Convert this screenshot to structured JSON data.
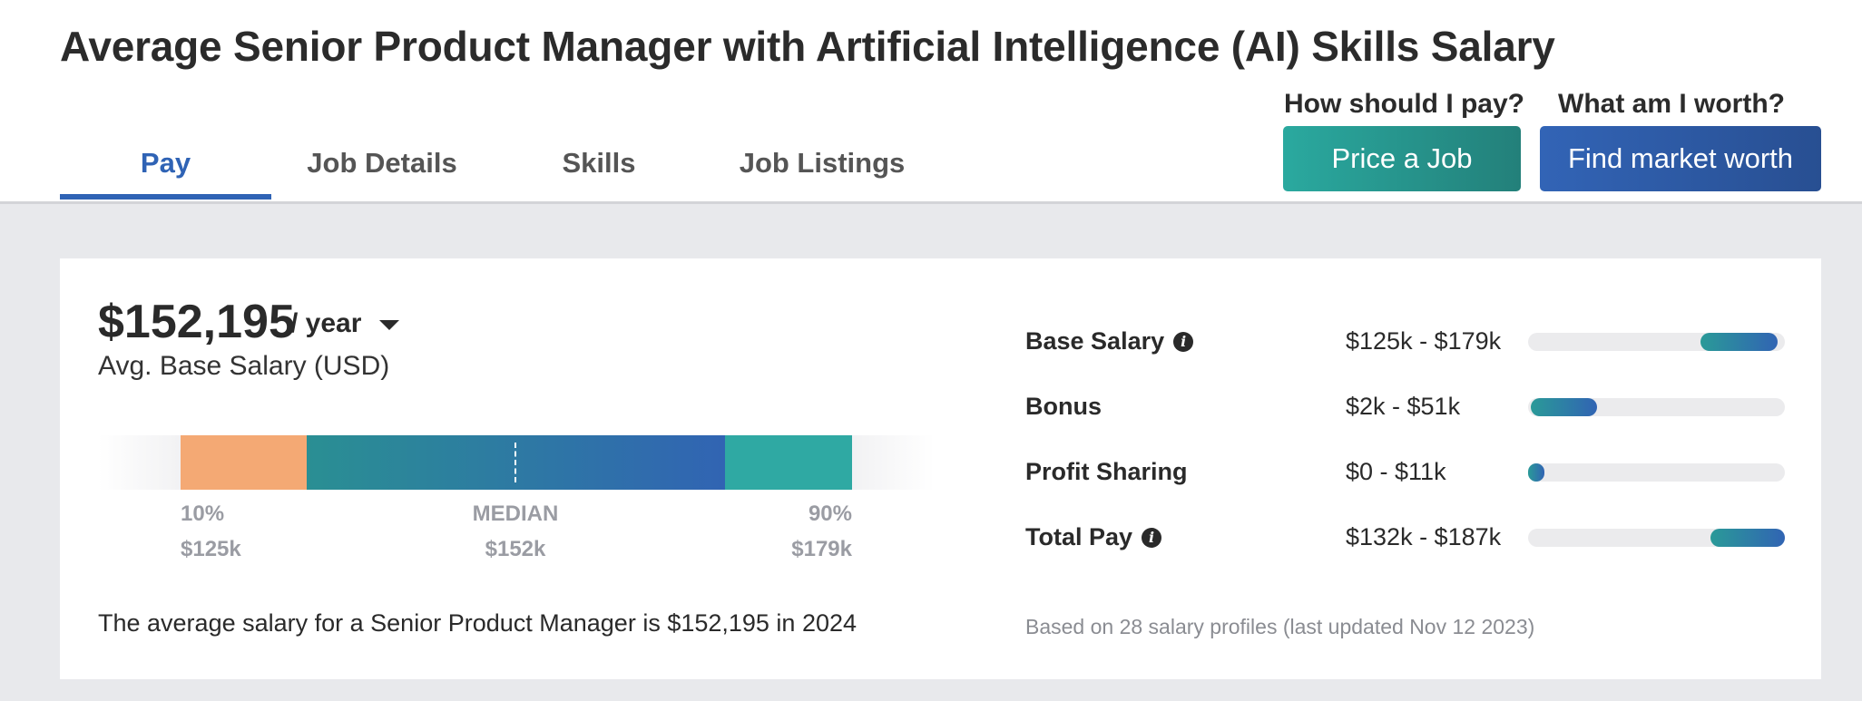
{
  "page": {
    "title": "Average Senior Product Manager with Artificial Intelligence (AI) Skills Salary"
  },
  "tabs": [
    {
      "label": "Pay",
      "active": true
    },
    {
      "label": "Job Details",
      "active": false
    },
    {
      "label": "Skills",
      "active": false
    },
    {
      "label": "Job Listings",
      "active": false
    }
  ],
  "cta": {
    "pay_prompt": "How should I pay?",
    "worth_prompt": "What am I worth?",
    "price_button": "Price a Job",
    "worth_button": "Find market worth"
  },
  "salary": {
    "amount": "$152,195",
    "period": "/ year",
    "subtitle": "Avg. Base Salary (USD)",
    "percentiles": [
      {
        "label": "10%",
        "value": "$125k"
      },
      {
        "label": "MEDIAN",
        "value": "$152k"
      },
      {
        "label": "90%",
        "value": "$179k"
      }
    ],
    "summary": "The average salary for a Senior Product Manager is $152,195 in 2024"
  },
  "compensation": {
    "items": [
      {
        "label": "Base Salary",
        "range": "$125k - $179k",
        "bar_start": 0.67,
        "bar_end": 0.97
      },
      {
        "label": "Bonus",
        "range": "$2k - $51k",
        "bar_start": 0.01,
        "bar_end": 0.27
      },
      {
        "label": "Profit Sharing",
        "range": "$0 - $11k",
        "bar_start": 0.0,
        "bar_end": 0.06
      },
      {
        "label": "Total Pay",
        "range": "$132k - $187k",
        "bar_start": 0.71,
        "bar_end": 1.0
      }
    ],
    "footnote": "Based on 28 salary profiles (last updated Nov 12 2023)"
  },
  "colors": {
    "accent_blue": "#2f63b5",
    "accent_teal": "#2aa99f",
    "low_segment": "#f4a974",
    "high_segment": "#2fa9a3"
  }
}
